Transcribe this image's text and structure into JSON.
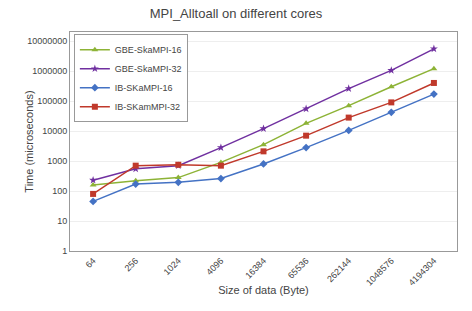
{
  "chart_data": {
    "type": "line",
    "title": "MPI_Alltoall on different cores",
    "xlabel": "Size of data (Byte)",
    "ylabel": "Time (microseconds)",
    "categories": [
      "64",
      "256",
      "1024",
      "4096",
      "16384",
      "65536",
      "262144",
      "1048576",
      "4194304"
    ],
    "series": [
      {
        "name": "GBE-SkaMPI-16",
        "color": "#8db336",
        "marker": "triangle-up",
        "values": [
          160,
          220,
          280,
          900,
          3500,
          18000,
          70000,
          300000,
          1200000
        ]
      },
      {
        "name": "GBE-SkaMPI-32",
        "color": "#7030a0",
        "marker": "star",
        "values": [
          230,
          550,
          700,
          2800,
          12000,
          55000,
          260000,
          1050000,
          5500000
        ]
      },
      {
        "name": "IB-SKaMPI-16",
        "color": "#4472c4",
        "marker": "diamond",
        "values": [
          45,
          170,
          195,
          260,
          800,
          2800,
          10500,
          42000,
          170000
        ]
      },
      {
        "name": "IB-SKamMPI-32",
        "color": "#c0392b",
        "marker": "square",
        "values": [
          80,
          700,
          750,
          700,
          2100,
          7000,
          28000,
          90000,
          400000
        ]
      }
    ],
    "log": "y",
    "ylim": [
      1,
      20000000
    ],
    "yticks": [
      1,
      10,
      100,
      1000,
      10000,
      100000,
      1000000,
      10000000
    ],
    "grid": true,
    "legend": "upper left"
  }
}
